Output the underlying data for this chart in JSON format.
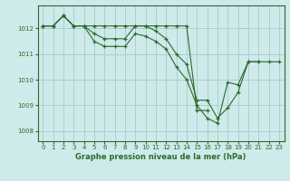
{
  "xlabel": "Graphe pression niveau de la mer (hPa)",
  "background_color": "#ceeaea",
  "line_color": "#2d6a2d",
  "grid_color": "#aacfcf",
  "ylim": [
    1007.6,
    1012.9
  ],
  "xlim": [
    -0.5,
    23.5
  ],
  "yticks": [
    1008,
    1009,
    1010,
    1011,
    1012
  ],
  "xticks": [
    0,
    1,
    2,
    3,
    4,
    5,
    6,
    7,
    8,
    9,
    10,
    11,
    12,
    13,
    14,
    15,
    16,
    17,
    18,
    19,
    20,
    21,
    22,
    23
  ],
  "series": [
    [
      1012.1,
      1012.1,
      1012.5,
      1012.1,
      1012.1,
      1012.1,
      1012.1,
      1012.1,
      1012.1,
      1012.1,
      1012.1,
      1012.1,
      1012.1,
      1012.1,
      1012.1,
      1008.8,
      1008.8,
      null,
      null,
      null,
      null,
      null,
      null,
      null
    ],
    [
      1012.1,
      1012.1,
      1012.5,
      1012.1,
      1012.1,
      1011.8,
      1011.6,
      1011.6,
      1011.6,
      1012.1,
      1012.1,
      1011.9,
      1011.6,
      1011.0,
      1010.6,
      1009.2,
      1009.2,
      1008.5,
      1008.9,
      1009.5,
      1010.7,
      1010.7,
      null,
      null
    ],
    [
      1012.1,
      1012.1,
      1012.5,
      1012.1,
      1012.1,
      1011.5,
      1011.3,
      1011.3,
      1011.3,
      1011.8,
      1011.7,
      1011.5,
      1011.2,
      1010.5,
      1010.0,
      1009.0,
      1008.5,
      1008.3,
      1009.9,
      1009.8,
      1010.7,
      1010.7,
      1010.7,
      1010.7
    ]
  ]
}
